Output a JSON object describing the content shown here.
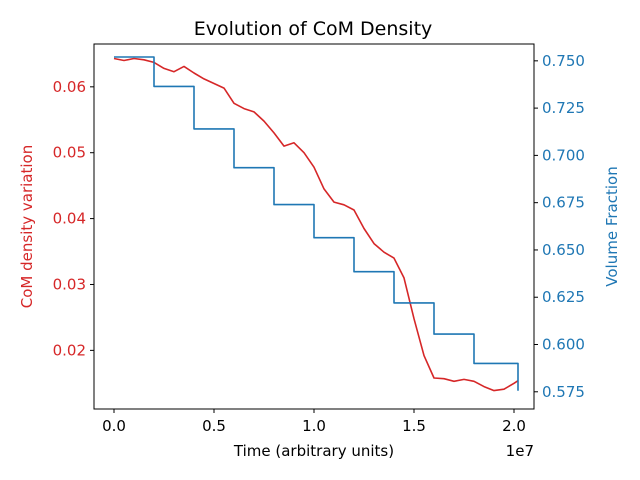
{
  "chart_data": {
    "type": "line",
    "title": "Evolution of CoM Density",
    "xlabel": "Time (arbitrary units)",
    "x_offset_label": "1e7",
    "xlim": [
      -0.1,
      2.1
    ],
    "x_ticks": [
      0.0,
      0.5,
      1.0,
      1.5,
      2.0
    ],
    "x_tick_labels": [
      "0.0",
      "0.5",
      "1.0",
      "1.5",
      "2.0"
    ],
    "grid": false,
    "legend": "none",
    "left_axis": {
      "label": "CoM density variation",
      "color": "#d62728",
      "ylim": [
        0.0111,
        0.0665
      ],
      "ticks": [
        0.02,
        0.03,
        0.04,
        0.05,
        0.06
      ],
      "tick_labels": [
        "0.02",
        "0.03",
        "0.04",
        "0.05",
        "0.06"
      ]
    },
    "right_axis": {
      "label": "Volume Fraction",
      "color": "#1f77b4",
      "ylim": [
        0.5659,
        0.7589
      ],
      "ticks": [
        0.575,
        0.6,
        0.625,
        0.65,
        0.675,
        0.7,
        0.725,
        0.75
      ],
      "tick_labels": [
        "0.575",
        "0.600",
        "0.625",
        "0.650",
        "0.675",
        "0.700",
        "0.725",
        "0.750"
      ]
    },
    "series": [
      {
        "axis": "left",
        "color": "#d62728",
        "x": [
          0.0,
          0.05,
          0.1,
          0.15,
          0.2,
          0.25,
          0.3,
          0.35,
          0.4,
          0.45,
          0.5,
          0.55,
          0.6,
          0.65,
          0.7,
          0.75,
          0.8,
          0.85,
          0.9,
          0.95,
          1.0,
          1.05,
          1.1,
          1.15,
          1.2,
          1.25,
          1.3,
          1.35,
          1.4,
          1.45,
          1.5,
          1.55,
          1.6,
          1.65,
          1.7,
          1.75,
          1.8,
          1.85,
          1.9,
          1.95,
          2.0,
          2.02
        ],
        "y": [
          0.0643,
          0.064,
          0.0643,
          0.0641,
          0.0637,
          0.0628,
          0.0623,
          0.0631,
          0.0621,
          0.0612,
          0.0605,
          0.0598,
          0.0575,
          0.0567,
          0.0562,
          0.0548,
          0.053,
          0.051,
          0.0515,
          0.05,
          0.0478,
          0.0445,
          0.0425,
          0.0421,
          0.0413,
          0.0385,
          0.0362,
          0.0349,
          0.034,
          0.031,
          0.0248,
          0.0192,
          0.0158,
          0.0157,
          0.0153,
          0.0156,
          0.0153,
          0.0145,
          0.0139,
          0.0141,
          0.015,
          0.0154
        ]
      },
      {
        "axis": "right",
        "color": "#1f77b4",
        "step": true,
        "x": [
          0.0,
          0.2,
          0.4,
          0.6,
          0.8,
          1.0,
          1.2,
          1.4,
          1.6,
          1.8,
          2.02
        ],
        "y": [
          0.752,
          0.7365,
          0.714,
          0.6935,
          0.674,
          0.6565,
          0.6385,
          0.622,
          0.6055,
          0.59,
          0.5755
        ]
      }
    ]
  }
}
